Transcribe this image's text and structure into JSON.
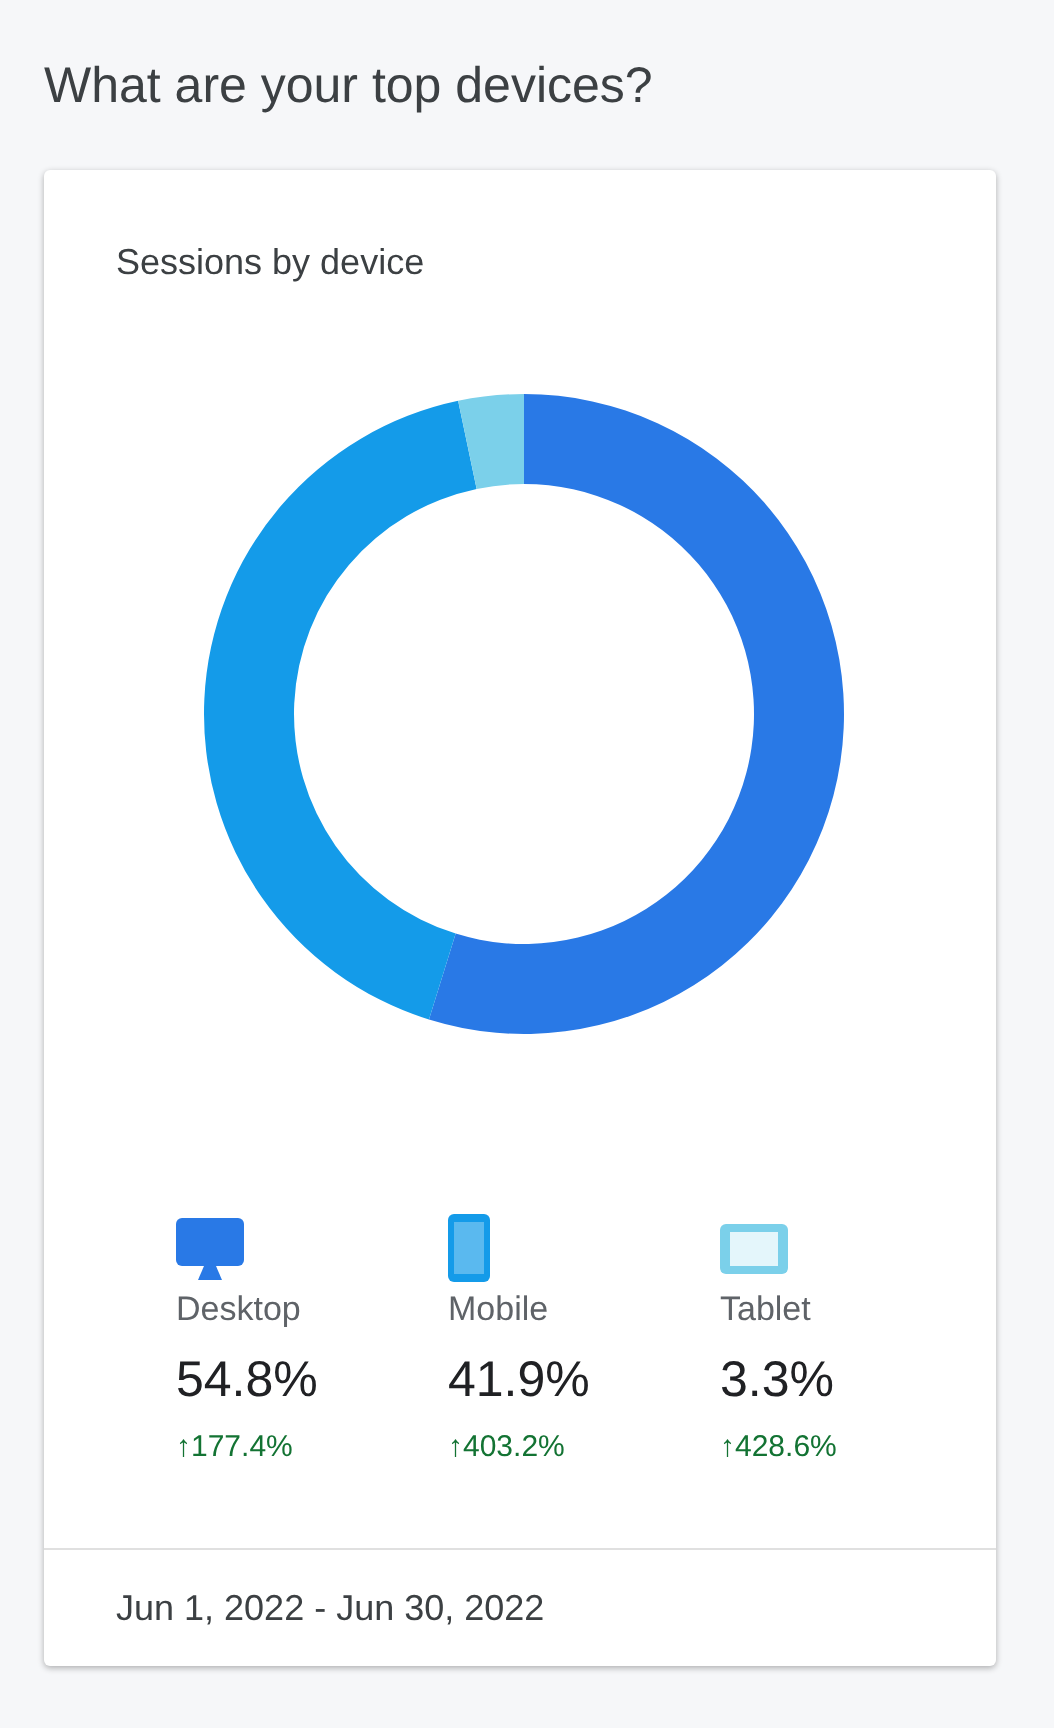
{
  "chart_data": {
    "type": "donut",
    "title": "What are your top devices?",
    "subtitle": "Sessions by device",
    "categories": [
      "Desktop",
      "Mobile",
      "Tablet"
    ],
    "values": [
      54.8,
      41.9,
      3.3
    ],
    "colors": [
      "#2979e6",
      "#149be9",
      "#7bd0ea"
    ],
    "value_labels": [
      "54.8%",
      "41.9%",
      "3.3%"
    ],
    "legend": "bottom",
    "annotations": [
      "↑177.4%",
      "↑403.2%",
      "↑428.6%",
      "Jun 1, 2022 - Jun 30, 2022"
    ]
  }
}
